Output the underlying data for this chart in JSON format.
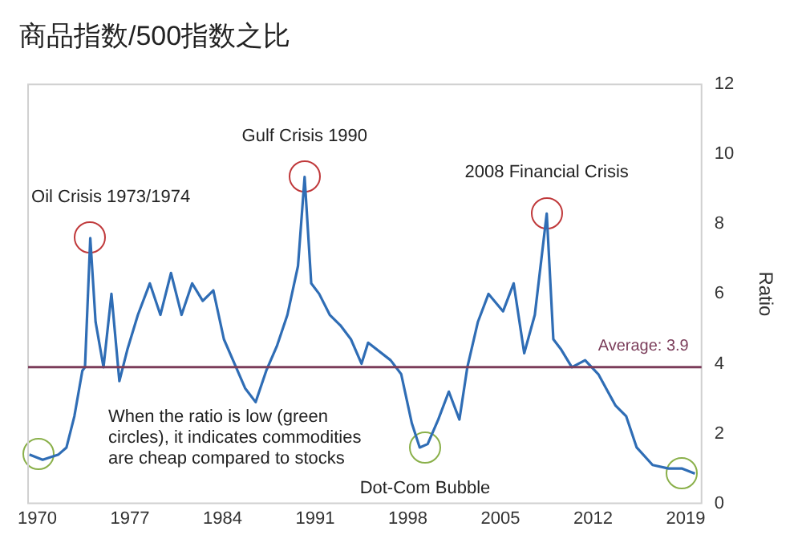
{
  "chart_data": {
    "type": "line",
    "title": "商品指数/500指数之比",
    "ylabel": "Ratio",
    "x": [
      1969.4,
      1970.4,
      1971.6,
      1972.2,
      1972.8,
      1973.4,
      1973.6,
      1974.0,
      1974.4,
      1975.0,
      1975.6,
      1976.2,
      1976.8,
      1977.6,
      1978.5,
      1979.3,
      1980.1,
      1980.9,
      1981.7,
      1982.5,
      1983.3,
      1984.1,
      1984.9,
      1985.7,
      1986.5,
      1987.3,
      1988.1,
      1988.9,
      1989.7,
      1990.2,
      1990.7,
      1991.3,
      1992.1,
      1992.9,
      1993.7,
      1994.5,
      1995.0,
      1996.7,
      1997.5,
      1998.3,
      1998.9,
      1999.5,
      2000.3,
      2001.1,
      2001.9,
      2002.5,
      2003.3,
      2004.1,
      2005.2,
      2006.0,
      2006.8,
      2007.6,
      2008.5,
      2009.0,
      2009.6,
      2010.4,
      2011.4,
      2012.4,
      2013.7,
      2014.5,
      2015.3,
      2016.5,
      2017.7,
      2018.7,
      2019.7
    ],
    "series": [
      {
        "color": "#2f6db5",
        "values": [
          1.4,
          1.25,
          1.4,
          1.6,
          2.5,
          3.8,
          3.9,
          7.6,
          5.2,
          3.9,
          6.0,
          3.5,
          4.4,
          5.4,
          6.3,
          5.4,
          6.6,
          5.4,
          6.3,
          5.8,
          6.1,
          4.7,
          4.0,
          3.3,
          2.9,
          3.8,
          4.5,
          5.4,
          6.8,
          9.35,
          6.3,
          6.0,
          5.4,
          5.1,
          4.7,
          4.0,
          4.6,
          4.1,
          3.7,
          2.3,
          1.6,
          1.7,
          2.4,
          3.2,
          2.4,
          3.9,
          5.2,
          6.0,
          5.5,
          6.3,
          4.3,
          5.4,
          8.3,
          4.7,
          4.4,
          3.9,
          4.1,
          3.7,
          2.8,
          2.5,
          1.6,
          1.1,
          1.0,
          1.0,
          0.85
        ]
      }
    ],
    "xlim": [
      1969.3,
      2020.2
    ],
    "xticks": [
      1970,
      1977,
      1984,
      1991,
      1998,
      2005,
      2012,
      2019
    ],
    "ylim": [
      0,
      12
    ],
    "yticks": [
      0,
      2,
      4,
      6,
      8,
      10,
      12
    ],
    "ref_lines": [
      {
        "axis": "y",
        "value": 3.9,
        "label": "Average: 3.9",
        "color": "#7b3d5a"
      }
    ],
    "annotations": [
      {
        "text": "Oil Crisis 1973/1974",
        "x": 1974.0,
        "y": 7.6
      },
      {
        "text": "Gulf Crisis 1990",
        "x": 1990.2,
        "y": 9.35
      },
      {
        "text": "2008 Financial Crisis",
        "x": 2008.5,
        "y": 8.3
      },
      {
        "text": "Dot-Com Bubble",
        "x": 1999.3,
        "y": 1.6
      },
      "When the ratio is low (green circles), it indicates commodities are cheap compared to stocks"
    ]
  }
}
